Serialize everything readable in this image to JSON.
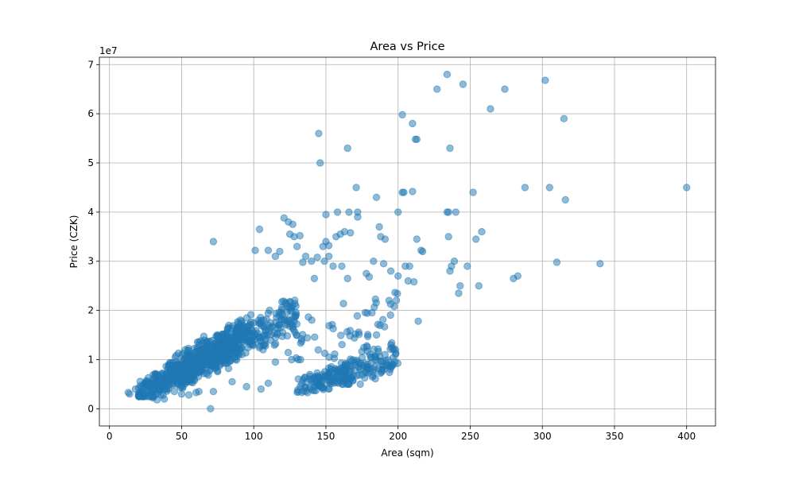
{
  "chart_data": {
    "type": "scatter",
    "title": "Area vs Price",
    "xlabel": "Area (sqm)",
    "ylabel": "Price (CZK)",
    "y_offset_label": "1e7",
    "xlim": [
      -7,
      420
    ],
    "ylim": [
      -0.35,
      7.15
    ],
    "y_scale_factor": 10000000,
    "xticks": [
      0,
      50,
      100,
      150,
      200,
      250,
      300,
      350,
      400
    ],
    "yticks": [
      0,
      1,
      2,
      3,
      4,
      5,
      6,
      7
    ],
    "grid": true,
    "marker_color": "#1f77b4",
    "marker_alpha": 0.5,
    "clusters": [
      {
        "x_range": [
          20,
          60
        ],
        "y_range": [
          0.35,
          1.1
        ],
        "count": 260
      },
      {
        "x_range": [
          40,
          90
        ],
        "y_range": [
          0.7,
          1.7
        ],
        "count": 320
      },
      {
        "x_range": [
          60,
          100
        ],
        "y_range": [
          1.0,
          2.0
        ],
        "count": 200
      },
      {
        "x_range": [
          95,
          130
        ],
        "y_range": [
          1.3,
          2.4
        ],
        "count": 120
      },
      {
        "x_range": [
          130,
          165
        ],
        "y_range": [
          0.4,
          1.0
        ],
        "count": 110
      },
      {
        "x_range": [
          160,
          200
        ],
        "y_range": [
          0.6,
          1.5
        ],
        "count": 120
      },
      {
        "x_range": [
          120,
          200
        ],
        "y_range": [
          1.1,
          2.6
        ],
        "count": 60
      }
    ],
    "points": [
      [
        13,
        0.33
      ],
      [
        14,
        0.3
      ],
      [
        18,
        0.4
      ],
      [
        26,
        0.55
      ],
      [
        30,
        0.22
      ],
      [
        33,
        0.18
      ],
      [
        38,
        0.2
      ],
      [
        45,
        0.35
      ],
      [
        50,
        0.3
      ],
      [
        55,
        0.28
      ],
      [
        60,
        0.33
      ],
      [
        62,
        0.35
      ],
      [
        70,
        0.0
      ],
      [
        72,
        0.35
      ],
      [
        72,
        3.4
      ],
      [
        85,
        0.55
      ],
      [
        95,
        0.45
      ],
      [
        105,
        0.4
      ],
      [
        110,
        0.52
      ],
      [
        115,
        0.95
      ],
      [
        101,
        3.22
      ],
      [
        104,
        3.65
      ],
      [
        110,
        3.22
      ],
      [
        115,
        3.1
      ],
      [
        118,
        3.2
      ],
      [
        121,
        3.88
      ],
      [
        124,
        3.8
      ],
      [
        125,
        3.55
      ],
      [
        127,
        3.75
      ],
      [
        128,
        3.5
      ],
      [
        130,
        3.3
      ],
      [
        132,
        3.52
      ],
      [
        134,
        2.98
      ],
      [
        136,
        3.1
      ],
      [
        140,
        3.0
      ],
      [
        142,
        2.65
      ],
      [
        144,
        3.08
      ],
      [
        145,
        5.6
      ],
      [
        146,
        5.0
      ],
      [
        148,
        3.3
      ],
      [
        149,
        3.0
      ],
      [
        150,
        3.4
      ],
      [
        150,
        3.95
      ],
      [
        152,
        3.1
      ],
      [
        152,
        3.32
      ],
      [
        155,
        2.9
      ],
      [
        157,
        3.5
      ],
      [
        158,
        4.0
      ],
      [
        160,
        3.55
      ],
      [
        161,
        2.9
      ],
      [
        163,
        3.6
      ],
      [
        165,
        5.3
      ],
      [
        165,
        2.65
      ],
      [
        166,
        4.0
      ],
      [
        167,
        3.58
      ],
      [
        171,
        4.5
      ],
      [
        172,
        4.0
      ],
      [
        172,
        3.9
      ],
      [
        178,
        2.75
      ],
      [
        180,
        2.68
      ],
      [
        183,
        3.0
      ],
      [
        185,
        4.3
      ],
      [
        187,
        3.7
      ],
      [
        188,
        3.5
      ],
      [
        190,
        2.95
      ],
      [
        191,
        3.45
      ],
      [
        195,
        2.8
      ],
      [
        200,
        4.0
      ],
      [
        200,
        2.7
      ],
      [
        203,
        5.98
      ],
      [
        203,
        4.4
      ],
      [
        204,
        4.4
      ],
      [
        205,
        2.9
      ],
      [
        207,
        2.6
      ],
      [
        208,
        2.9
      ],
      [
        210,
        5.8
      ],
      [
        210,
        4.42
      ],
      [
        211,
        2.58
      ],
      [
        212,
        5.48
      ],
      [
        213,
        5.48
      ],
      [
        213,
        3.45
      ],
      [
        214,
        1.78
      ],
      [
        216,
        3.22
      ],
      [
        217,
        3.2
      ],
      [
        227,
        6.5
      ],
      [
        234,
        6.8
      ],
      [
        234,
        4.0
      ],
      [
        235,
        4.0
      ],
      [
        235,
        3.5
      ],
      [
        236,
        5.3
      ],
      [
        236,
        2.8
      ],
      [
        237,
        2.9
      ],
      [
        239,
        3.0
      ],
      [
        240,
        4.0
      ],
      [
        242,
        2.35
      ],
      [
        243,
        2.5
      ],
      [
        245,
        6.6
      ],
      [
        248,
        2.9
      ],
      [
        252,
        4.4
      ],
      [
        254,
        3.45
      ],
      [
        256,
        2.5
      ],
      [
        258,
        3.6
      ],
      [
        264,
        6.1
      ],
      [
        274,
        6.5
      ],
      [
        280,
        2.65
      ],
      [
        283,
        2.7
      ],
      [
        288,
        4.5
      ],
      [
        302,
        6.68
      ],
      [
        305,
        4.5
      ],
      [
        310,
        2.98
      ],
      [
        315,
        5.9
      ],
      [
        316,
        4.25
      ],
      [
        340,
        2.95
      ],
      [
        400,
        4.5
      ]
    ]
  }
}
